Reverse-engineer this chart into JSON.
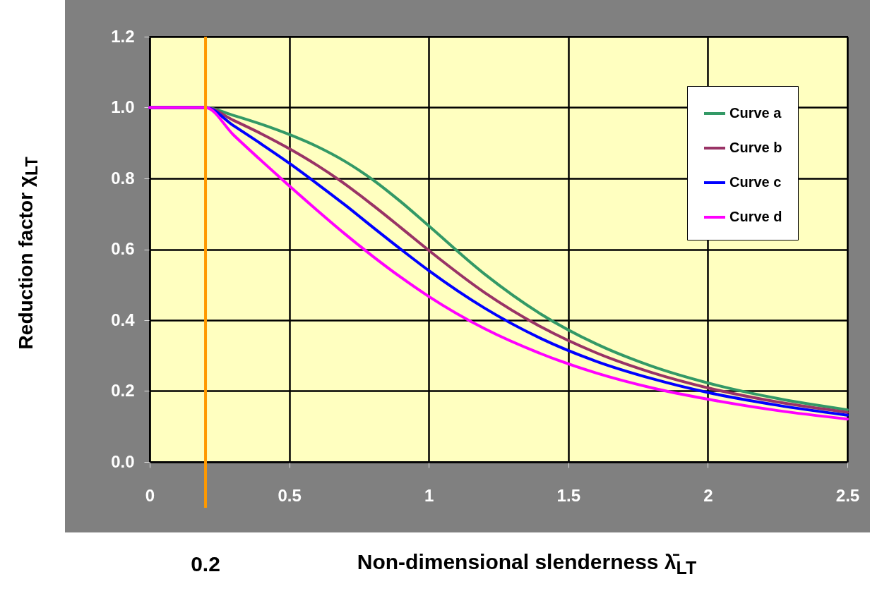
{
  "chart_data": {
    "type": "line",
    "xlabel": "Non-dimensional slenderness λ̄$_{LT}$",
    "ylabel": "Reduction factor χ$_{LT}$",
    "x": [
      0,
      0.2,
      0.3,
      0.4,
      0.5,
      0.6,
      0.7,
      0.8,
      0.9,
      1.0,
      1.2,
      1.4,
      1.6,
      1.8,
      2.0,
      2.25,
      2.5
    ],
    "series": [
      {
        "name": "Curve a",
        "color": "#339966",
        "values": [
          1,
          1,
          0.978,
          0.953,
          0.924,
          0.89,
          0.848,
          0.796,
          0.734,
          0.666,
          0.53,
          0.418,
          0.333,
          0.27,
          0.223,
          0.179,
          0.147
        ]
      },
      {
        "name": "Curve b",
        "color": "#993366",
        "values": [
          1,
          1,
          0.964,
          0.926,
          0.884,
          0.837,
          0.784,
          0.724,
          0.661,
          0.597,
          0.478,
          0.382,
          0.308,
          0.252,
          0.209,
          0.169,
          0.14
        ]
      },
      {
        "name": "Curve c",
        "color": "#0000ff",
        "values": [
          1,
          1,
          0.949,
          0.897,
          0.843,
          0.785,
          0.725,
          0.662,
          0.6,
          0.54,
          0.434,
          0.349,
          0.284,
          0.235,
          0.196,
          0.16,
          0.132
        ]
      },
      {
        "name": "Curve d",
        "color": "#ff00ff",
        "values": [
          1,
          1,
          0.923,
          0.85,
          0.779,
          0.71,
          0.643,
          0.58,
          0.521,
          0.467,
          0.376,
          0.306,
          0.251,
          0.209,
          0.177,
          0.145,
          0.121
        ]
      }
    ],
    "xlim": [
      0,
      2.5
    ],
    "xticks": [
      0,
      0.5,
      1,
      1.5,
      2,
      2.5
    ],
    "ylim": [
      0,
      1.2
    ],
    "yticks": [
      {
        "value": 0,
        "label": "0.0"
      },
      {
        "value": 0.2,
        "label": "0.2"
      },
      {
        "value": 0.4,
        "label": "0.4"
      },
      {
        "value": 0.6,
        "label": "0.6"
      },
      {
        "value": 0.8,
        "label": "0.8"
      },
      {
        "value": 1,
        "label": "1.0"
      },
      {
        "value": 1.2,
        "label": "1.2"
      }
    ],
    "ref_lines": [
      {
        "axis": "x",
        "value": 0.2,
        "label": "0.2",
        "color": "#ff9900"
      }
    ],
    "grid": true,
    "legend": "top right"
  }
}
